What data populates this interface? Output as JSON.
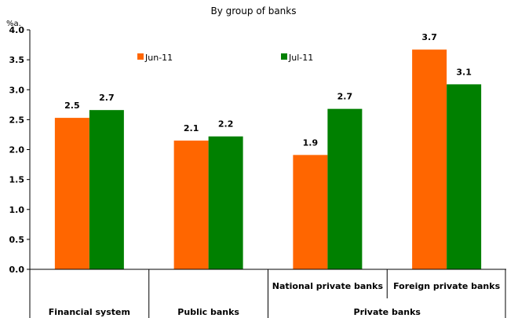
{
  "chart_data": {
    "type": "bar",
    "subtitle": "By group of banks",
    "ylabel": "%a.",
    "ylim": [
      0,
      4.0
    ],
    "ytick_step": 0.5,
    "ytick_labels": [
      "0.0",
      "0.5",
      "1.0",
      "1.5",
      "2.0",
      "2.5",
      "3.0",
      "3.5",
      "4.0"
    ],
    "categories": [
      "Financial system",
      "Public banks",
      "National private banks",
      "Foreign private banks"
    ],
    "group_label": "Private banks",
    "series": [
      {
        "name": "Jun-11",
        "color": "#ff6600",
        "values": [
          2.53,
          2.15,
          1.91,
          3.67
        ],
        "labels": [
          "2.5",
          "2.1",
          "1.9",
          "3.7"
        ]
      },
      {
        "name": "Jul-11",
        "color": "#008000",
        "values": [
          2.66,
          2.22,
          2.68,
          3.09
        ],
        "labels": [
          "2.7",
          "2.2",
          "2.7",
          "3.1"
        ]
      }
    ],
    "legend": "top, inside plot",
    "grid": false
  }
}
